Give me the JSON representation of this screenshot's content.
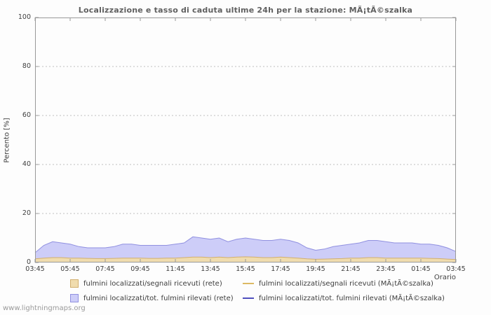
{
  "header": {
    "title": "Localizzazione e tasso di caduta ultime 24h per la stazione: MÃ¡tÃ©szalka"
  },
  "axes": {
    "y_title": "Percento [%]",
    "x_title": "Orario"
  },
  "page": {
    "watermark": "www.lightningmaps.org"
  },
  "colors": {
    "grid": "#c0c0c0",
    "frame": "#999999",
    "title": "#5f5f5f"
  },
  "legend": [
    {
      "label": "fulmini localizzati/segnali ricevuti (rete)",
      "swatch": "area",
      "color": "#f0dcae",
      "edge": "#d2af6e"
    },
    {
      "label": "fulmini localizzati/segnali ricevuti (MÃ¡tÃ©szalka)",
      "swatch": "line",
      "color": "#dcb964"
    },
    {
      "label": "fulmini localizzati/tot. fulmini rilevati (rete)",
      "swatch": "area",
      "color": "#cdcdf8",
      "edge": "#9090e0"
    },
    {
      "label": "fulmini localizzati/tot. fulmini rilevati (MÃ¡tÃ©szalka)",
      "swatch": "line",
      "color": "#4f4fbe"
    }
  ],
  "chart_data": {
    "type": "area",
    "title": "Localizzazione e tasso di caduta ultime 24h per la stazione: MÃ¡tÃ©szalka",
    "xlabel": "Orario",
    "ylabel": "Percento [%]",
    "ylim": [
      0,
      100
    ],
    "grid": "horizontal-dotted",
    "legend_position": "bottom",
    "y_ticks": [
      0,
      20,
      40,
      60,
      80,
      100
    ],
    "x_ticks": [
      "03:45",
      "05:45",
      "07:45",
      "09:45",
      "11:45",
      "13:45",
      "15:45",
      "17:45",
      "19:45",
      "21:45",
      "23:45",
      "01:45",
      "03:45"
    ],
    "series": [
      {
        "name": "fulmini localizzati/tot. fulmini rilevati (rete)",
        "type": "area",
        "color": "#cdcdf8",
        "edge": "#9090e0",
        "values": [
          4.0,
          7.0,
          8.5,
          8.0,
          7.5,
          6.5,
          6.0,
          6.0,
          6.0,
          6.5,
          7.5,
          7.5,
          7.0,
          7.0,
          7.0,
          7.0,
          7.5,
          8.0,
          10.5,
          10.0,
          9.5,
          10.0,
          8.5,
          9.5,
          10.0,
          9.5,
          9.0,
          9.0,
          9.5,
          9.0,
          8.0,
          6.0,
          5.0,
          5.5,
          6.5,
          7.0,
          7.5,
          8.0,
          9.0,
          9.0,
          8.5,
          8.0,
          8.0,
          8.0,
          7.5,
          7.5,
          7.0,
          6.0,
          4.5
        ]
      },
      {
        "name": "fulmini localizzati/segnali ricevuti (rete)",
        "type": "area",
        "color": "#f0dcae",
        "edge": "#d2af6e",
        "values": [
          1.5,
          1.8,
          2.0,
          2.0,
          1.8,
          1.8,
          1.7,
          1.6,
          1.6,
          1.7,
          1.8,
          1.8,
          1.8,
          1.7,
          1.7,
          1.8,
          1.8,
          2.0,
          2.2,
          2.2,
          2.0,
          2.2,
          2.0,
          2.2,
          2.3,
          2.2,
          2.0,
          2.0,
          2.2,
          2.0,
          1.8,
          1.5,
          1.3,
          1.4,
          1.5,
          1.6,
          1.8,
          1.8,
          2.0,
          2.0,
          1.8,
          1.8,
          1.8,
          1.8,
          1.8,
          1.7,
          1.6,
          1.4,
          1.2
        ]
      },
      {
        "name": "fulmini localizzati/segnali ricevuti (MÃ¡tÃ©szalka)",
        "type": "line",
        "color": "#dcb964",
        "values": []
      },
      {
        "name": "fulmini localizzati/tot. fulmini rilevati (MÃ¡tÃ©szalka)",
        "type": "line",
        "color": "#4f4fbe",
        "values": []
      }
    ]
  }
}
